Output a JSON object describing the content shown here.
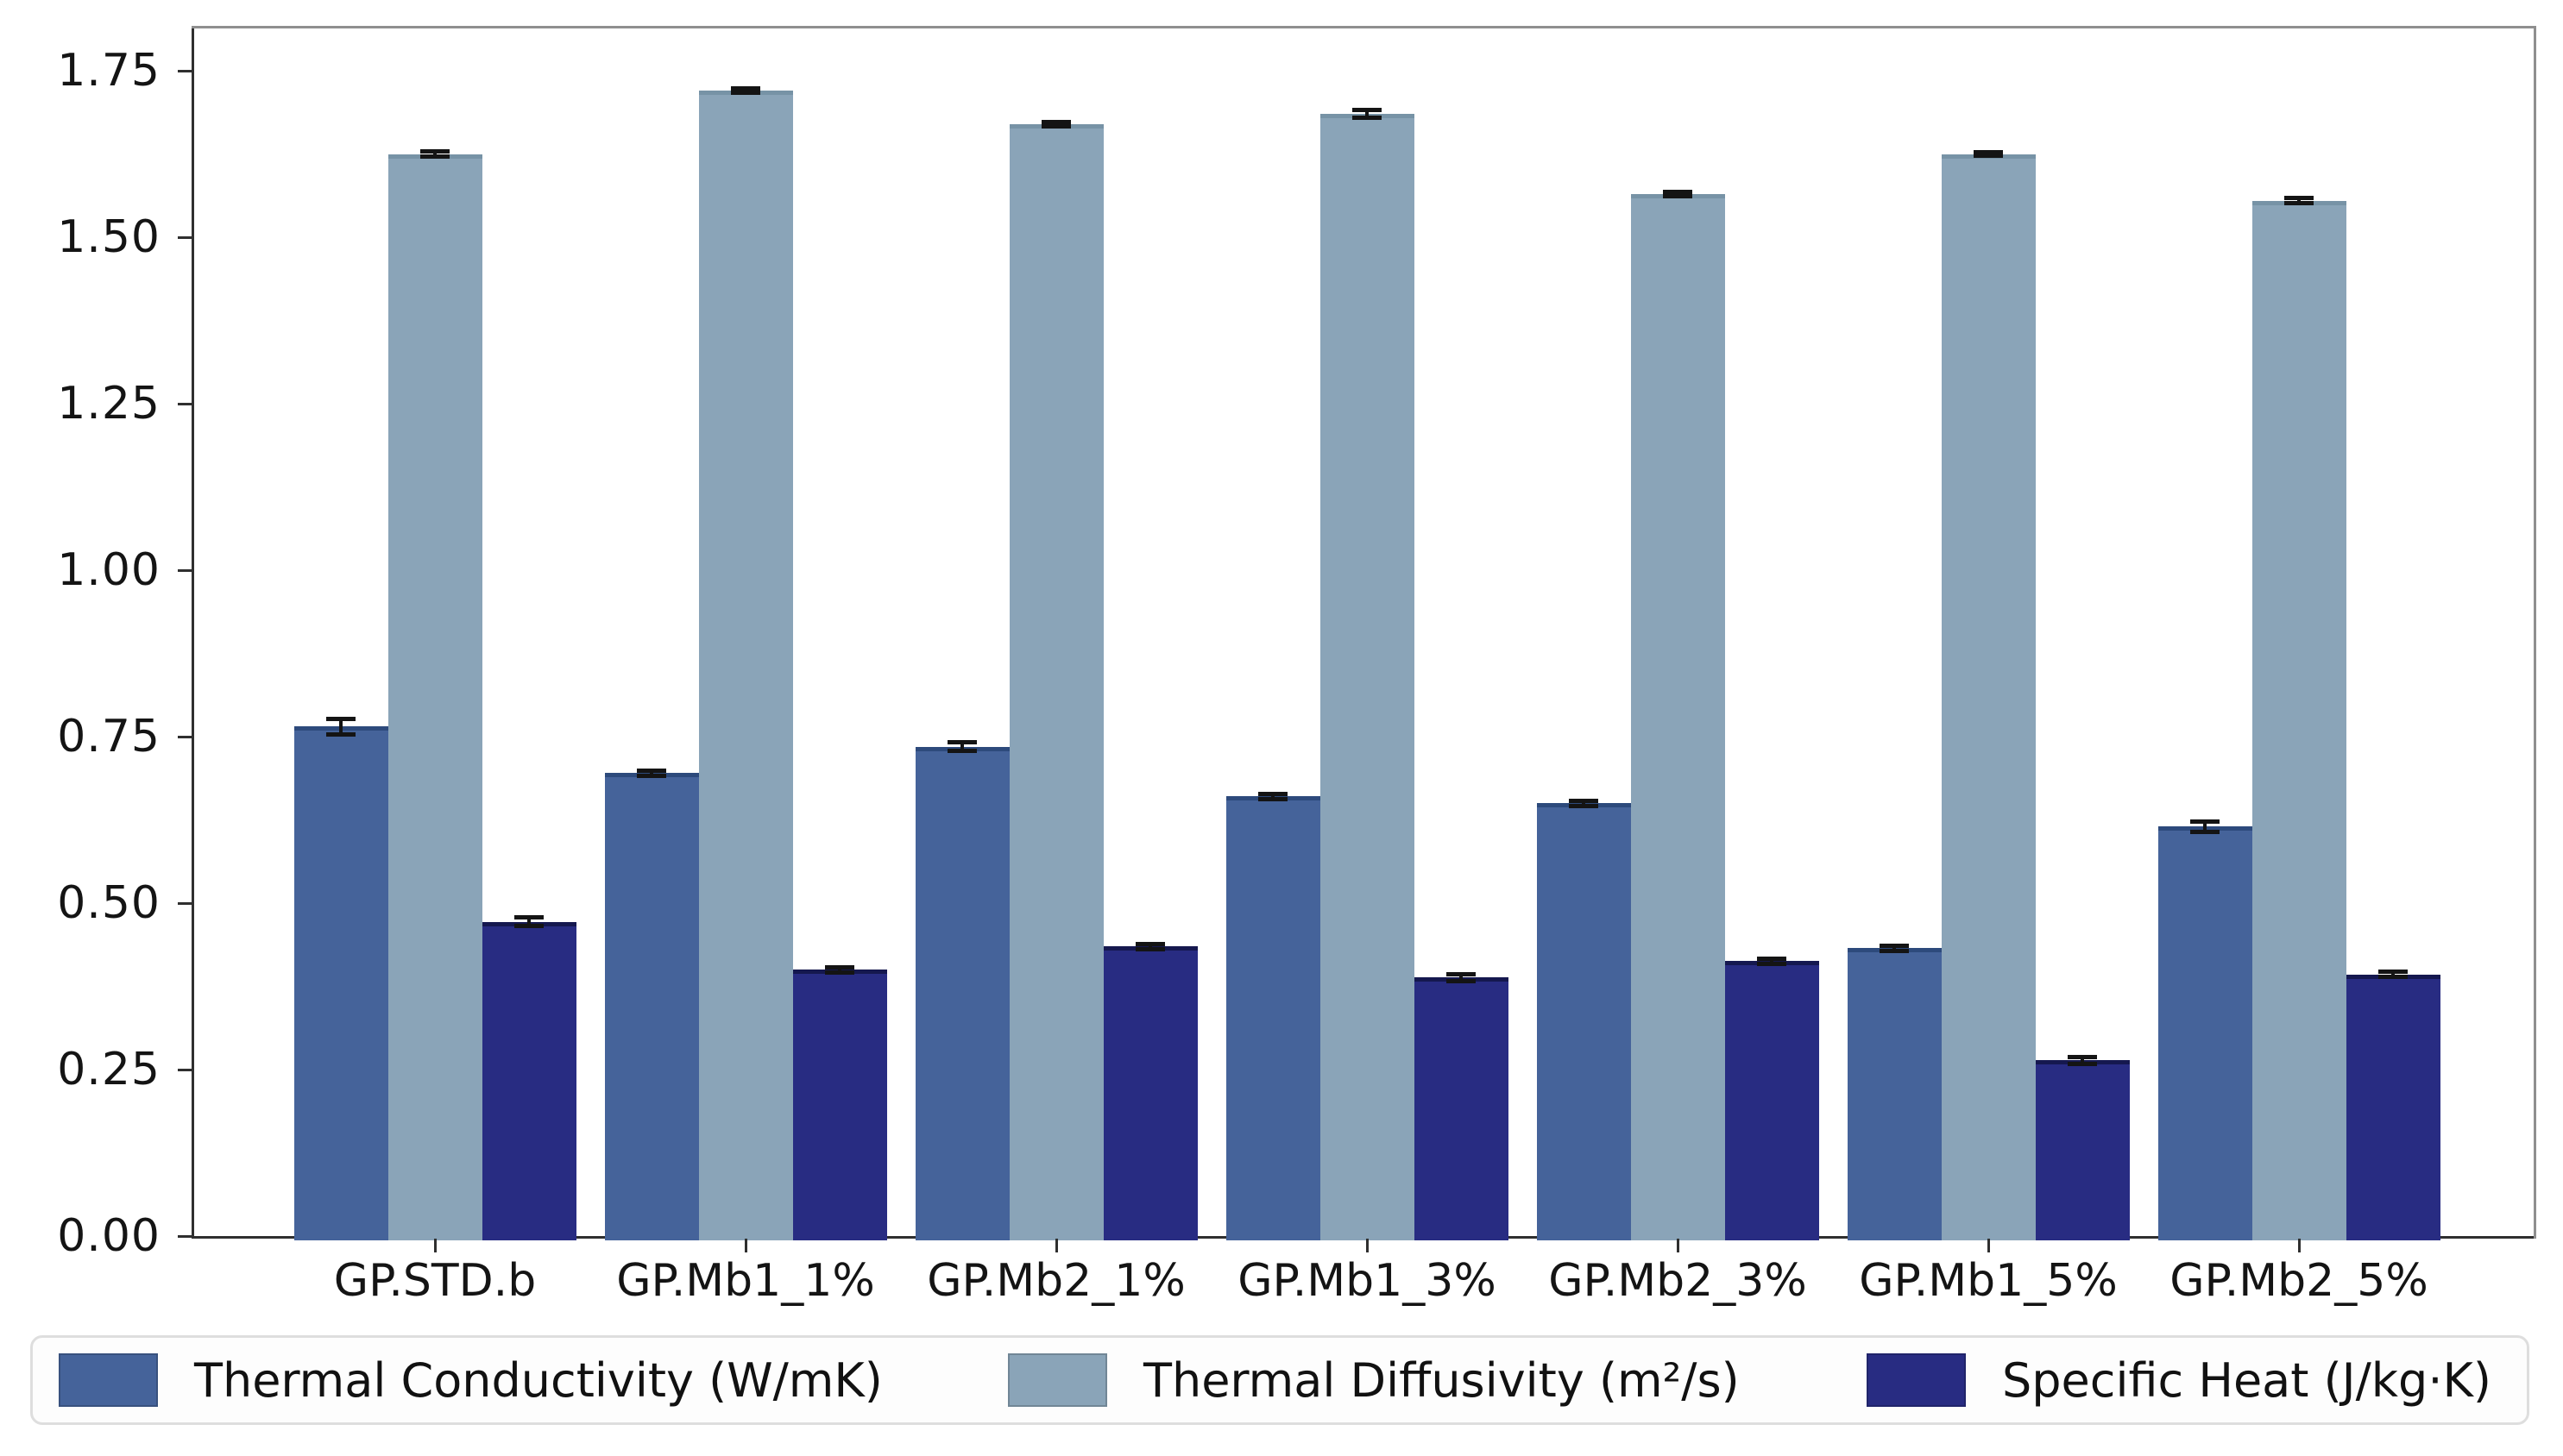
{
  "figure": {
    "background": "#ffffff",
    "title": ""
  },
  "chart_data": {
    "type": "bar",
    "title": "",
    "xlabel": "",
    "ylabel": "",
    "grid": false,
    "legend_position": "bottom",
    "categories": [
      "GP.STD.b",
      "GP.Mb1_1%",
      "GP.Mb2_1%",
      "GP.Mb1_3%",
      "GP.Mb2_3%",
      "GP.Mb1_5%",
      "GP.Mb2_5%"
    ],
    "series": [
      {
        "name": "Thermal Conductivity (W/mK)",
        "color": "#45639a",
        "edge_color": "#2d4a7c",
        "values": [
          0.765,
          0.695,
          0.735,
          0.66,
          0.65,
          0.432,
          0.615
        ],
        "errors": [
          0.012,
          0.004,
          0.006,
          0.004,
          0.004,
          0.004,
          0.008
        ]
      },
      {
        "name": "Thermal Diffusivity (m²/s)",
        "color": "#8aa4b8",
        "edge_color": "#7793a6",
        "values": [
          1.625,
          1.72,
          1.67,
          1.685,
          1.565,
          1.625,
          1.555
        ],
        "errors": [
          0.004,
          0.003,
          0.003,
          0.006,
          0.003,
          0.003,
          0.004
        ]
      },
      {
        "name": "Specific Heat (J/kg·K)",
        "color": "#282c82",
        "edge_color": "#15184f",
        "values": [
          0.472,
          0.4,
          0.435,
          0.388,
          0.413,
          0.264,
          0.393
        ],
        "errors": [
          0.006,
          0.004,
          0.004,
          0.005,
          0.004,
          0.005,
          0.004
        ]
      }
    ],
    "y_ticks": [
      "0.00",
      "0.25",
      "0.50",
      "0.75",
      "1.00",
      "1.25",
      "1.50",
      "1.75"
    ],
    "y_tick_values": [
      0.0,
      0.25,
      0.5,
      0.75,
      1.0,
      1.25,
      1.5,
      1.75
    ],
    "ylim": [
      0.0,
      1.8125
    ],
    "error_bar_color": "#141414"
  }
}
